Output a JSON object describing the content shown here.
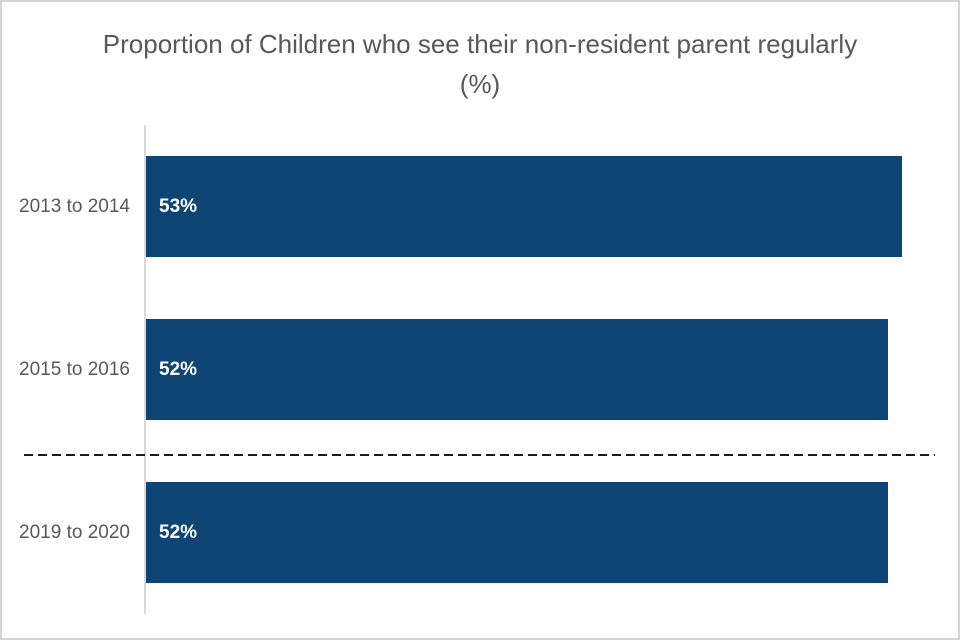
{
  "chart_data": {
    "type": "bar",
    "orientation": "horizontal",
    "title": "Proportion of Children who see their non-resident parent regularly (%)",
    "categories": [
      "2013 to 2014",
      "2015 to 2016",
      "2019 to 2020"
    ],
    "values": [
      53,
      52,
      52
    ],
    "data_labels": [
      "53%",
      "52%",
      "52%"
    ],
    "xlabel": "",
    "ylabel": "",
    "xlim": [
      0,
      55.3
    ],
    "grid": false,
    "legend": "none",
    "annotations": [
      {
        "type": "series-break-dashed-line",
        "position": "between 2015 to 2016 and 2019 to 2020"
      }
    ]
  },
  "colors": {
    "bar_fill": "#0e4575",
    "title_text": "#595959",
    "category_text": "#595959",
    "data_label_text": "#ffffff",
    "axis_line": "#d9d9d9",
    "break_line": "#1a1a1a",
    "frame_border": "#d5d5d5",
    "background": "#ffffff"
  }
}
